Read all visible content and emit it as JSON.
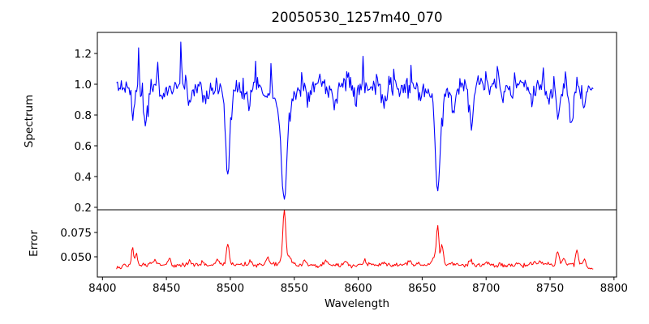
{
  "figure": {
    "title": "20050530_1257m40_070",
    "background": "#ffffff"
  },
  "chart_data": [
    {
      "type": "line",
      "name": "spectrum-panel",
      "title": "20050530_1257m40_070",
      "xlabel": "Wavelength",
      "ylabel": "Spectrum",
      "legend": null,
      "grid": false,
      "line_color": "#0000ff",
      "xlim": [
        8396,
        8802
      ],
      "ylim": [
        0.184,
        1.337
      ],
      "y_ticks": [
        0.2,
        0.4,
        0.6,
        0.8,
        1.0,
        1.2
      ],
      "y_tick_labels": [
        "0.2",
        "0.4",
        "0.6",
        "0.8",
        "1.0",
        "1.2"
      ],
      "x_ticks_visible": false,
      "x_start": 8411,
      "x_end": 8784,
      "sample_step": 0.75,
      "continuum": 0.985,
      "continuum_rolloff_start": 8730,
      "continuum_rolloff_slope": 0.0005,
      "noise_sigma": 0.028,
      "absorption_lines": [
        {
          "center": 8424.0,
          "depth": 0.2,
          "width": 1.1
        },
        {
          "center": 8433.5,
          "depth": 0.24,
          "width": 1.5
        },
        {
          "center": 8447.0,
          "depth": 0.08,
          "width": 1.2
        },
        {
          "center": 8468.0,
          "depth": 0.11,
          "width": 1.4
        },
        {
          "center": 8480.5,
          "depth": 0.09,
          "width": 1.2
        },
        {
          "center": 8498.0,
          "depth": 0.5,
          "width": 1.5
        },
        {
          "center": 8498.0,
          "depth": 0.07,
          "width": 4.5
        },
        {
          "center": 8514.5,
          "depth": 0.12,
          "width": 1.4
        },
        {
          "center": 8527.0,
          "depth": 0.07,
          "width": 1.2
        },
        {
          "center": 8542.1,
          "depth": 0.6,
          "width": 2.1
        },
        {
          "center": 8542.1,
          "depth": 0.14,
          "width": 6.5
        },
        {
          "center": 8561.5,
          "depth": 0.11,
          "width": 1.3
        },
        {
          "center": 8582.0,
          "depth": 0.14,
          "width": 1.4
        },
        {
          "center": 8598.0,
          "depth": 0.09,
          "width": 1.2
        },
        {
          "center": 8620.5,
          "depth": 0.13,
          "width": 1.4
        },
        {
          "center": 8636.0,
          "depth": 0.07,
          "width": 1.1
        },
        {
          "center": 8648.0,
          "depth": 0.09,
          "width": 1.2
        },
        {
          "center": 8662.1,
          "depth": 0.58,
          "width": 1.8
        },
        {
          "center": 8662.1,
          "depth": 0.11,
          "width": 5.5
        },
        {
          "center": 8674.5,
          "depth": 0.15,
          "width": 1.2
        },
        {
          "center": 8688.5,
          "depth": 0.27,
          "width": 1.3
        },
        {
          "center": 8713.0,
          "depth": 0.08,
          "width": 1.2
        },
        {
          "center": 8719.0,
          "depth": 0.1,
          "width": 1.1
        },
        {
          "center": 8736.0,
          "depth": 0.09,
          "width": 1.2
        },
        {
          "center": 8748.5,
          "depth": 0.11,
          "width": 1.1
        },
        {
          "center": 8756.5,
          "depth": 0.19,
          "width": 1.4
        },
        {
          "center": 8766.5,
          "depth": 0.21,
          "width": 1.3
        },
        {
          "center": 8776.5,
          "depth": 0.11,
          "width": 1.1
        }
      ],
      "emission_spikes": [
        {
          "x": 8428.5,
          "dy": 0.24
        },
        {
          "x": 8443.0,
          "dy": 0.12
        },
        {
          "x": 8461.0,
          "dy": 0.3
        },
        {
          "x": 8489.0,
          "dy": 0.1
        },
        {
          "x": 8520.0,
          "dy": 0.11
        },
        {
          "x": 8531.5,
          "dy": 0.15
        },
        {
          "x": 8556.0,
          "dy": 0.13
        },
        {
          "x": 8570.0,
          "dy": 0.1
        },
        {
          "x": 8591.0,
          "dy": 0.11
        },
        {
          "x": 8604.0,
          "dy": 0.16
        },
        {
          "x": 8614.0,
          "dy": 0.1
        },
        {
          "x": 8628.0,
          "dy": 0.11
        },
        {
          "x": 8641.0,
          "dy": 0.13
        },
        {
          "x": 8700.0,
          "dy": 0.11
        },
        {
          "x": 8709.0,
          "dy": 0.12
        },
        {
          "x": 8722.0,
          "dy": 0.1
        },
        {
          "x": 8745.0,
          "dy": 0.11
        },
        {
          "x": 8753.0,
          "dy": 0.12
        },
        {
          "x": 8762.0,
          "dy": 0.13
        },
        {
          "x": 8771.0,
          "dy": 0.12
        }
      ]
    },
    {
      "type": "line",
      "name": "error-panel",
      "xlabel": "Wavelength",
      "ylabel": "Error",
      "legend": null,
      "grid": false,
      "line_color": "#ff0000",
      "xlim": [
        8396,
        8802
      ],
      "ylim": [
        0.0292,
        0.0983
      ],
      "y_ticks": [
        0.05,
        0.075
      ],
      "y_tick_labels": [
        "0.050",
        "0.075"
      ],
      "x_ticks": [
        8400,
        8450,
        8500,
        8550,
        8600,
        8650,
        8700,
        8750,
        8800
      ],
      "x_tick_labels": [
        "8400",
        "8450",
        "8500",
        "8550",
        "8600",
        "8650",
        "8700",
        "8750",
        "8800"
      ],
      "x_start": 8411,
      "x_end": 8784,
      "sample_step": 0.75,
      "baseline": 0.0415,
      "noise_sigma": 0.0011,
      "peaks": [
        {
          "center": 8423.5,
          "amp": 0.017,
          "width": 0.9
        },
        {
          "center": 8426.5,
          "amp": 0.012,
          "width": 0.8
        },
        {
          "center": 8441.0,
          "amp": 0.004,
          "width": 1.2
        },
        {
          "center": 8452.0,
          "amp": 0.007,
          "width": 1.1
        },
        {
          "center": 8468.0,
          "amp": 0.004,
          "width": 1.5
        },
        {
          "center": 8478.0,
          "amp": 0.004,
          "width": 1.2
        },
        {
          "center": 8490.0,
          "amp": 0.006,
          "width": 1.6
        },
        {
          "center": 8498.0,
          "amp": 0.023,
          "width": 1.1
        },
        {
          "center": 8516.0,
          "amp": 0.004,
          "width": 1.3
        },
        {
          "center": 8529.0,
          "amp": 0.007,
          "width": 1.6
        },
        {
          "center": 8542.1,
          "amp": 0.052,
          "width": 1.1
        },
        {
          "center": 8545.0,
          "amp": 0.008,
          "width": 2.5
        },
        {
          "center": 8558.0,
          "amp": 0.004,
          "width": 1.3
        },
        {
          "center": 8575.0,
          "amp": 0.004,
          "width": 1.4
        },
        {
          "center": 8590.0,
          "amp": 0.004,
          "width": 1.2
        },
        {
          "center": 8605.0,
          "amp": 0.005,
          "width": 1.3
        },
        {
          "center": 8620.0,
          "amp": 0.003,
          "width": 1.2
        },
        {
          "center": 8640.0,
          "amp": 0.003,
          "width": 1.2
        },
        {
          "center": 8660.0,
          "amp": 0.006,
          "width": 3.0
        },
        {
          "center": 8662.1,
          "amp": 0.036,
          "width": 1.0
        },
        {
          "center": 8665.5,
          "amp": 0.022,
          "width": 0.9
        },
        {
          "center": 8688.0,
          "amp": 0.007,
          "width": 1.2
        },
        {
          "center": 8700.0,
          "amp": 0.004,
          "width": 1.2
        },
        {
          "center": 8725.0,
          "amp": 0.003,
          "width": 1.2
        },
        {
          "center": 8742.0,
          "amp": 0.003,
          "width": 1.1
        },
        {
          "center": 8756.0,
          "amp": 0.014,
          "width": 1.1
        },
        {
          "center": 8760.5,
          "amp": 0.008,
          "width": 1.0
        },
        {
          "center": 8771.0,
          "amp": 0.015,
          "width": 1.0
        },
        {
          "center": 8777.0,
          "amp": 0.005,
          "width": 1.0
        }
      ]
    }
  ]
}
